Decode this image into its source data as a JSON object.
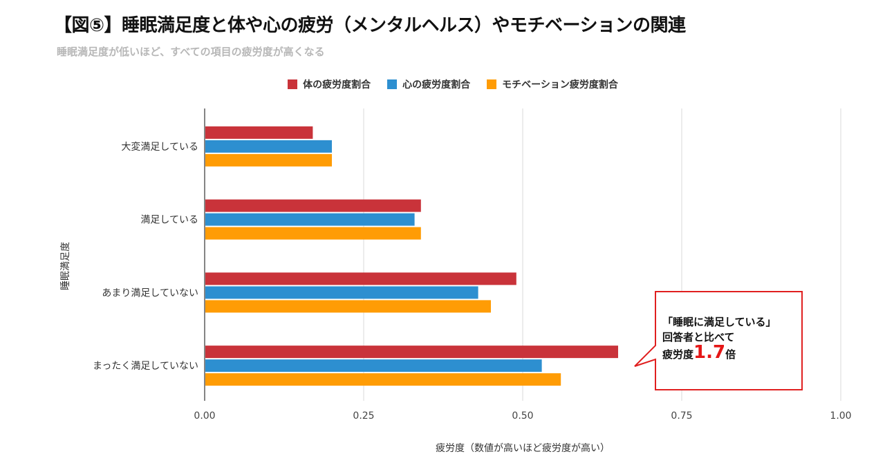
{
  "title": "【図⑤】睡眠満足度と体や心の疲労（メンタルヘルス）やモチベーションの関連",
  "subtitle": "睡眠満足度が低いほど、すべての項目の疲労度が高くなる",
  "chart_data": {
    "type": "bar",
    "orientation": "horizontal",
    "categories": [
      "大変満足している",
      "満足している",
      "あまり満足していない",
      "まったく満足していない"
    ],
    "series": [
      {
        "name": "体の疲労度割合",
        "color": "#c9333a",
        "values": [
          0.17,
          0.34,
          0.49,
          0.65
        ]
      },
      {
        "name": "心の疲労度割合",
        "color": "#2d8fd0",
        "values": [
          0.2,
          0.33,
          0.43,
          0.53
        ]
      },
      {
        "name": "モチベーション疲労度割合",
        "color": "#ff9c05",
        "values": [
          0.2,
          0.34,
          0.45,
          0.56
        ]
      }
    ],
    "xlim": [
      0,
      1
    ],
    "xticks": [
      "0.00",
      "0.25",
      "0.50",
      "0.75",
      "1.00"
    ],
    "xlabel": "疲労度（数値が高いほど疲労度が高い）",
    "ylabel": "睡眠満足度",
    "legend_position": "top-center",
    "grid": true
  },
  "callout": {
    "line1": "「睡眠に満足している」",
    "line2": "回答者と比べて",
    "line3_prefix": "疲労度",
    "line3_number": "1.7",
    "line3_suffix": "倍",
    "border_color": "#e01f1f"
  }
}
